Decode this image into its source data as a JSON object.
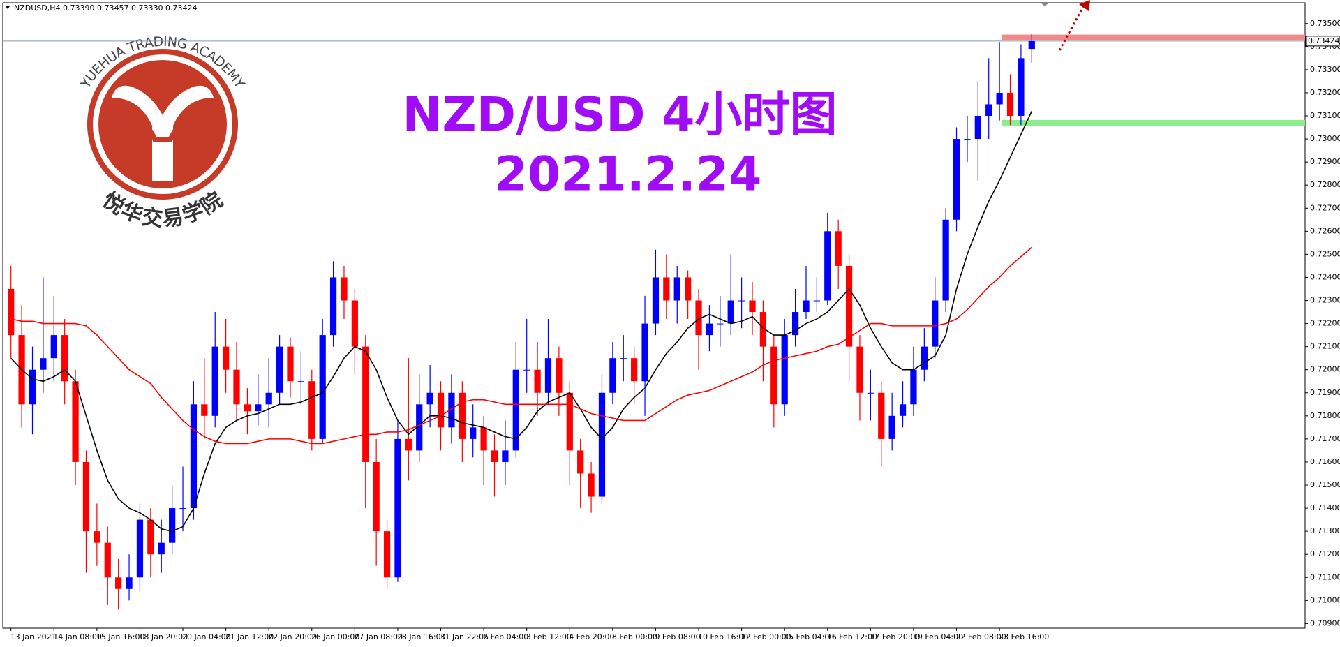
{
  "logo": {
    "name_en": "YUEHUA TRADING ACADEMY",
    "name_cn": "悦华交易学院"
  },
  "chart_data": {
    "type": "candlestick",
    "title": "NZD/USD 4小时图",
    "subtitle": "2021.2.24",
    "symbol_info": "NZDUSD,H4  0.73390 0.73457 0.73330 0.73424",
    "up_color": "#0000ff",
    "down_color": "#ff0000",
    "categories": [
      "13 Jan 2021",
      null,
      null,
      null,
      "14 Jan 08:00",
      null,
      null,
      null,
      "15 Jan 16:00",
      null,
      null,
      null,
      "18 Jan 20:00",
      null,
      null,
      null,
      "20 Jan 04:00",
      null,
      null,
      null,
      "21 Jan 12:00",
      null,
      null,
      null,
      "22 Jan 20:00",
      null,
      null,
      null,
      "26 Jan 00:00",
      null,
      null,
      null,
      "27 Jan 08:00",
      null,
      null,
      null,
      "28 Jan 16:00",
      null,
      null,
      null,
      "31 Jan 22:05",
      null,
      null,
      null,
      "2 Feb 04:00",
      null,
      null,
      null,
      "3 Feb 12:00",
      null,
      null,
      null,
      "4 Feb 20:00",
      null,
      null,
      null,
      "8 Feb 00:00",
      null,
      null,
      null,
      "9 Feb 08:00",
      null,
      null,
      null,
      "10 Feb 16:00",
      null,
      null,
      null,
      "12 Feb 00:00",
      null,
      null,
      null,
      "15 Feb 04:00",
      null,
      null,
      null,
      "16 Feb 12:00",
      null,
      null,
      null,
      "17 Feb 20:00",
      null,
      null,
      null,
      "19 Feb 04:00",
      null,
      null,
      null,
      "22 Feb 08:00",
      null,
      null,
      null,
      "23 Feb 16:00",
      null,
      null,
      null
    ],
    "open": [
      0.7235,
      0.7215,
      0.7185,
      0.72,
      0.7205,
      0.7215,
      0.7195,
      0.716,
      0.713,
      0.7125,
      0.711,
      0.7105,
      0.711,
      0.7135,
      0.712,
      0.7125,
      0.714,
      0.714,
      0.7185,
      0.718,
      0.721,
      0.72,
      0.7185,
      0.7182,
      0.7185,
      0.719,
      0.721,
      0.7195,
      0.7195,
      0.717,
      0.7215,
      0.724,
      0.723,
      0.721,
      0.716,
      0.713,
      0.711,
      0.717,
      0.7165,
      0.7185,
      0.719,
      0.7175,
      0.719,
      0.717,
      0.7175,
      0.7165,
      0.716,
      0.7165,
      0.72,
      0.72,
      0.719,
      0.7205,
      0.719,
      0.7165,
      0.7155,
      0.7145,
      0.719,
      0.7205,
      0.7205,
      0.7195,
      0.722,
      0.724,
      0.723,
      0.724,
      0.723,
      0.7215,
      0.722,
      0.722,
      0.723,
      0.723,
      0.7225,
      0.721,
      0.7185,
      0.7215,
      0.7225,
      0.723,
      0.723,
      0.726,
      0.7245,
      0.721,
      0.719,
      0.719,
      0.717,
      0.718,
      0.7185,
      0.72,
      0.721,
      0.723,
      0.7265,
      0.73,
      0.73,
      0.731,
      0.7315,
      0.732,
      0.731,
      0.7339
    ],
    "high": [
      0.7245,
      0.7228,
      0.721,
      0.724,
      0.7232,
      0.7222,
      0.72,
      0.7165,
      0.7142,
      0.7132,
      0.7118,
      0.712,
      0.7142,
      0.714,
      0.7135,
      0.715,
      0.7158,
      0.7195,
      0.7205,
      0.7225,
      0.7222,
      0.7212,
      0.7192,
      0.7198,
      0.7205,
      0.7215,
      0.7214,
      0.7208,
      0.72,
      0.7222,
      0.7247,
      0.7245,
      0.7235,
      0.7215,
      0.717,
      0.7135,
      0.7178,
      0.7205,
      0.7198,
      0.7202,
      0.7195,
      0.7198,
      0.7195,
      0.7185,
      0.718,
      0.7172,
      0.7178,
      0.7212,
      0.7222,
      0.7212,
      0.7222,
      0.721,
      0.7195,
      0.717,
      0.716,
      0.7198,
      0.7212,
      0.7215,
      0.721,
      0.7232,
      0.7252,
      0.725,
      0.7245,
      0.7243,
      0.7235,
      0.7228,
      0.7232,
      0.725,
      0.724,
      0.7238,
      0.723,
      0.7215,
      0.7222,
      0.7235,
      0.7245,
      0.724,
      0.7268,
      0.7265,
      0.725,
      0.7215,
      0.72,
      0.7195,
      0.719,
      0.7195,
      0.721,
      0.7218,
      0.724,
      0.727,
      0.7305,
      0.731,
      0.7325,
      0.7335,
      0.7342,
      0.7328,
      0.7341,
      0.73457
    ],
    "low": [
      0.7205,
      0.7175,
      0.7172,
      0.719,
      0.7195,
      0.7185,
      0.715,
      0.7112,
      0.7115,
      0.7098,
      0.7096,
      0.71,
      0.7104,
      0.711,
      0.7112,
      0.712,
      0.713,
      0.7135,
      0.717,
      0.7175,
      0.719,
      0.7178,
      0.7172,
      0.7176,
      0.7175,
      0.7185,
      0.7188,
      0.7185,
      0.7165,
      0.7168,
      0.721,
      0.7222,
      0.7198,
      0.714,
      0.7115,
      0.7105,
      0.7108,
      0.7152,
      0.716,
      0.7175,
      0.7165,
      0.7168,
      0.716,
      0.7162,
      0.715,
      0.7145,
      0.715,
      0.7162,
      0.719,
      0.718,
      0.7185,
      0.718,
      0.715,
      0.714,
      0.7138,
      0.7142,
      0.7185,
      0.7195,
      0.7185,
      0.718,
      0.7215,
      0.7222,
      0.722,
      0.7222,
      0.72,
      0.7208,
      0.721,
      0.7215,
      0.7218,
      0.7215,
      0.7195,
      0.7175,
      0.718,
      0.721,
      0.7222,
      0.7225,
      0.7228,
      0.7235,
      0.7195,
      0.7178,
      0.7178,
      0.7158,
      0.7165,
      0.7175,
      0.718,
      0.7195,
      0.7205,
      0.7225,
      0.726,
      0.729,
      0.7282,
      0.73,
      0.7308,
      0.7306,
      0.7306,
      0.7333
    ],
    "close": [
      0.7215,
      0.7185,
      0.72,
      0.7205,
      0.7215,
      0.7195,
      0.716,
      0.713,
      0.7125,
      0.711,
      0.7105,
      0.711,
      0.7135,
      0.712,
      0.7125,
      0.714,
      0.714,
      0.7185,
      0.718,
      0.721,
      0.72,
      0.7185,
      0.7182,
      0.7185,
      0.719,
      0.721,
      0.7195,
      0.7195,
      0.717,
      0.7215,
      0.724,
      0.723,
      0.721,
      0.716,
      0.713,
      0.711,
      0.717,
      0.7165,
      0.7185,
      0.719,
      0.7175,
      0.719,
      0.717,
      0.7175,
      0.7165,
      0.716,
      0.7165,
      0.72,
      0.72,
      0.719,
      0.7205,
      0.719,
      0.7165,
      0.7155,
      0.7145,
      0.719,
      0.7205,
      0.7205,
      0.7195,
      0.722,
      0.724,
      0.723,
      0.724,
      0.723,
      0.7215,
      0.722,
      0.722,
      0.723,
      0.723,
      0.7225,
      0.721,
      0.7185,
      0.7215,
      0.7225,
      0.723,
      0.723,
      0.726,
      0.7245,
      0.721,
      0.719,
      0.719,
      0.717,
      0.718,
      0.7185,
      0.72,
      0.721,
      0.723,
      0.7265,
      0.73,
      0.73,
      0.731,
      0.7315,
      0.732,
      0.731,
      0.7335,
      0.73424
    ],
    "overlays": [
      {
        "color": "#000000",
        "values": [
          0.7205,
          0.72,
          0.7196,
          0.7195,
          0.7197,
          0.72,
          0.7195,
          0.718,
          0.7165,
          0.7152,
          0.7144,
          0.714,
          0.7138,
          0.7135,
          0.7131,
          0.713,
          0.7132,
          0.714,
          0.7155,
          0.7168,
          0.7175,
          0.7178,
          0.718,
          0.7181,
          0.7183,
          0.7185,
          0.7185,
          0.7186,
          0.7188,
          0.719,
          0.7197,
          0.7205,
          0.721,
          0.7208,
          0.72,
          0.7188,
          0.7178,
          0.7172,
          0.7176,
          0.718,
          0.718,
          0.7179,
          0.7177,
          0.7176,
          0.7175,
          0.7173,
          0.7171,
          0.717,
          0.7175,
          0.7182,
          0.7186,
          0.7188,
          0.719,
          0.7183,
          0.7175,
          0.717,
          0.7175,
          0.7183,
          0.7188,
          0.7192,
          0.72,
          0.7207,
          0.7212,
          0.7218,
          0.7222,
          0.7224,
          0.7222,
          0.722,
          0.7221,
          0.7223,
          0.7218,
          0.7215,
          0.7215,
          0.7217,
          0.722,
          0.7222,
          0.7225,
          0.723,
          0.7235,
          0.7228,
          0.7218,
          0.721,
          0.7203,
          0.72,
          0.72,
          0.7203,
          0.7206,
          0.7215,
          0.7235,
          0.725,
          0.7262,
          0.7273,
          0.7282,
          0.7292,
          0.7302,
          0.7312
        ]
      },
      {
        "color": "#ff0000",
        "values": [
          0.7222,
          0.7221,
          0.7221,
          0.722,
          0.722,
          0.722,
          0.722,
          0.7219,
          0.7215,
          0.721,
          0.7205,
          0.72,
          0.7197,
          0.7194,
          0.7188,
          0.7183,
          0.7178,
          0.7174,
          0.7171,
          0.7169,
          0.7168,
          0.7168,
          0.7168,
          0.7169,
          0.717,
          0.717,
          0.717,
          0.7169,
          0.7168,
          0.7168,
          0.7169,
          0.717,
          0.7171,
          0.7172,
          0.7172,
          0.7173,
          0.7173,
          0.7174,
          0.7176,
          0.7178,
          0.718,
          0.7183,
          0.7186,
          0.7187,
          0.7187,
          0.7186,
          0.7185,
          0.7185,
          0.7185,
          0.7185,
          0.7185,
          0.7185,
          0.7185,
          0.7183,
          0.7181,
          0.718,
          0.7179,
          0.7178,
          0.7178,
          0.7178,
          0.7181,
          0.7184,
          0.7187,
          0.7189,
          0.719,
          0.7191,
          0.7193,
          0.7195,
          0.7197,
          0.7199,
          0.7202,
          0.7204,
          0.7205,
          0.7206,
          0.7207,
          0.7208,
          0.721,
          0.7211,
          0.7214,
          0.7217,
          0.722,
          0.722,
          0.7219,
          0.7219,
          0.7219,
          0.7219,
          0.7219,
          0.722,
          0.7222,
          0.7226,
          0.7231,
          0.7236,
          0.724,
          0.7245,
          0.7249,
          0.7253
        ]
      }
    ],
    "levels": [
      {
        "value": 0.7344,
        "color": "#f08a8a"
      },
      {
        "value": 0.7307,
        "color": "#8aee8a"
      }
    ],
    "current_price": {
      "value": 0.73424,
      "label": "0.73424"
    },
    "ylim": [
      0.7088,
      0.7359
    ],
    "yticks": [
      {
        "value": 0.709,
        "label": "0.70900"
      },
      {
        "value": 0.71,
        "label": "0.71000"
      },
      {
        "value": 0.711,
        "label": "0.71100"
      },
      {
        "value": 0.712,
        "label": "0.71200"
      },
      {
        "value": 0.713,
        "label": "0.71300"
      },
      {
        "value": 0.714,
        "label": "0.71400"
      },
      {
        "value": 0.715,
        "label": "0.71500"
      },
      {
        "value": 0.716,
        "label": "0.71600"
      },
      {
        "value": 0.717,
        "label": "0.71700"
      },
      {
        "value": 0.718,
        "label": "0.71800"
      },
      {
        "value": 0.719,
        "label": "0.71900"
      },
      {
        "value": 0.72,
        "label": "0.72000"
      },
      {
        "value": 0.721,
        "label": "0.72100"
      },
      {
        "value": 0.722,
        "label": "0.72200"
      },
      {
        "value": 0.723,
        "label": "0.72300"
      },
      {
        "value": 0.724,
        "label": "0.72400"
      },
      {
        "value": 0.725,
        "label": "0.72500"
      },
      {
        "value": 0.726,
        "label": "0.72600"
      },
      {
        "value": 0.727,
        "label": "0.72700"
      },
      {
        "value": 0.728,
        "label": "0.72800"
      },
      {
        "value": 0.729,
        "label": "0.72900"
      },
      {
        "value": 0.73,
        "label": "0.73000"
      },
      {
        "value": 0.731,
        "label": "0.73100"
      },
      {
        "value": 0.732,
        "label": "0.73200"
      },
      {
        "value": 0.733,
        "label": "0.73300"
      },
      {
        "value": 0.734,
        "label": "0.73400"
      },
      {
        "value": 0.735,
        "label": "0.73500"
      }
    ]
  }
}
